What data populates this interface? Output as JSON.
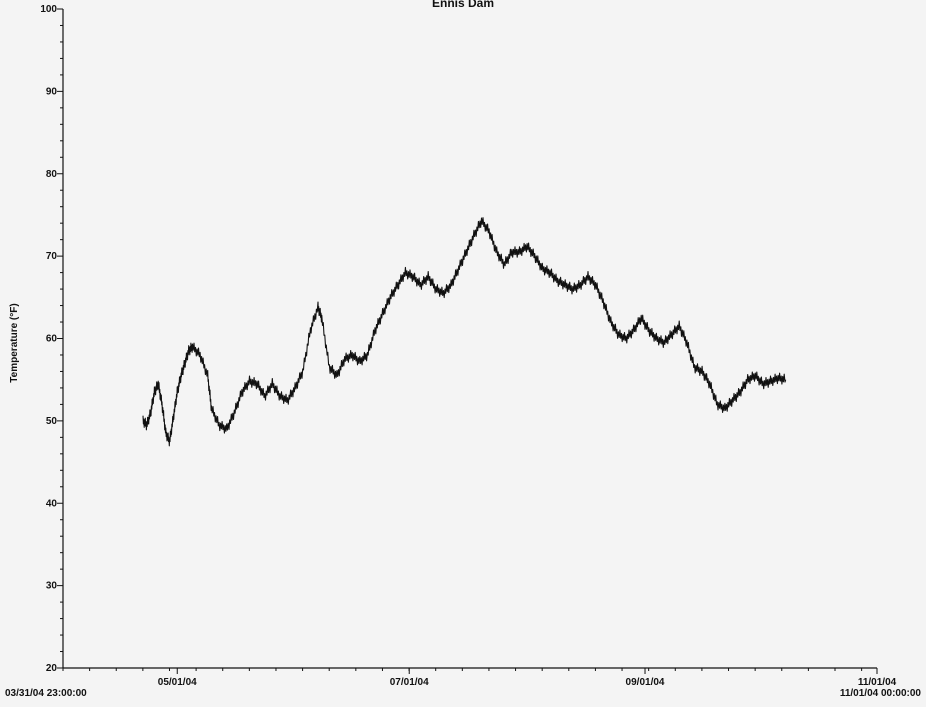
{
  "chart_data": {
    "type": "line",
    "title": "Ennis Dam",
    "xlabel": "",
    "ylabel": "Temperature (°F)",
    "ylim": [
      20,
      100
    ],
    "y_ticks": [
      20,
      30,
      40,
      50,
      60,
      70,
      80,
      90,
      100
    ],
    "xlim": [
      "2004-03-31 23:00",
      "2004-11-01 00:00"
    ],
    "x_ticks": [
      {
        "date": "2004-05-01",
        "label": "05/01/04"
      },
      {
        "date": "2004-07-01",
        "label": "07/01/04"
      },
      {
        "date": "2004-09-01",
        "label": "09/01/04"
      },
      {
        "date": "2004-11-01",
        "label": "11/01/04"
      }
    ],
    "x_start_label": "03/31/04 23:00:00",
    "x_end_label": "11/01/04 00:00:00",
    "grid": false,
    "line_color": "#111111",
    "series": [
      {
        "name": "",
        "x": [
          "2004-04-22",
          "2004-04-23",
          "2004-04-24",
          "2004-04-25",
          "2004-04-26",
          "2004-04-27",
          "2004-04-28",
          "2004-04-29",
          "2004-04-30",
          "2004-05-01",
          "2004-05-02",
          "2004-05-03",
          "2004-05-04",
          "2004-05-05",
          "2004-05-07",
          "2004-05-09",
          "2004-05-10",
          "2004-05-12",
          "2004-05-14",
          "2004-05-16",
          "2004-05-18",
          "2004-05-20",
          "2004-05-22",
          "2004-05-24",
          "2004-05-26",
          "2004-05-28",
          "2004-05-30",
          "2004-06-01",
          "2004-06-03",
          "2004-06-05",
          "2004-06-07",
          "2004-06-08",
          "2004-06-10",
          "2004-06-12",
          "2004-06-14",
          "2004-06-16",
          "2004-06-18",
          "2004-06-20",
          "2004-06-22",
          "2004-06-24",
          "2004-06-26",
          "2004-06-28",
          "2004-06-30",
          "2004-07-02",
          "2004-07-04",
          "2004-07-06",
          "2004-07-08",
          "2004-07-10",
          "2004-07-12",
          "2004-07-14",
          "2004-07-16",
          "2004-07-18",
          "2004-07-20",
          "2004-07-22",
          "2004-07-24",
          "2004-07-26",
          "2004-07-28",
          "2004-07-30",
          "2004-08-01",
          "2004-08-03",
          "2004-08-05",
          "2004-08-07",
          "2004-08-09",
          "2004-08-11",
          "2004-08-13",
          "2004-08-15",
          "2004-08-17",
          "2004-08-19",
          "2004-08-21",
          "2004-08-23",
          "2004-08-25",
          "2004-08-27",
          "2004-08-29",
          "2004-08-31",
          "2004-09-02",
          "2004-09-04",
          "2004-09-06",
          "2004-09-08",
          "2004-09-10",
          "2004-09-12",
          "2004-09-14",
          "2004-09-16",
          "2004-09-18",
          "2004-09-20",
          "2004-09-22",
          "2004-09-24",
          "2004-09-26",
          "2004-09-28",
          "2004-09-30",
          "2004-10-02",
          "2004-10-04",
          "2004-10-06",
          "2004-10-08"
        ],
        "y": [
          50.0,
          49.5,
          51.0,
          53.5,
          54.5,
          52.0,
          48.5,
          47.5,
          50.5,
          53.5,
          55.5,
          57.0,
          58.5,
          59.0,
          58.0,
          55.5,
          51.5,
          49.5,
          49.0,
          51.0,
          53.5,
          54.8,
          54.5,
          53.0,
          54.5,
          53.0,
          52.5,
          54.0,
          56.0,
          61.0,
          63.8,
          62.5,
          56.5,
          55.5,
          57.5,
          58.0,
          57.2,
          58.0,
          61.0,
          63.0,
          65.0,
          66.5,
          68.0,
          67.5,
          66.5,
          67.5,
          66.0,
          65.5,
          66.5,
          68.5,
          70.5,
          72.5,
          74.3,
          73.0,
          70.5,
          69.0,
          70.5,
          70.5,
          71.2,
          70.0,
          68.5,
          68.0,
          67.0,
          66.5,
          66.0,
          66.5,
          67.5,
          66.5,
          64.5,
          62.0,
          60.5,
          60.0,
          61.0,
          62.5,
          61.0,
          60.0,
          59.5,
          60.5,
          61.5,
          59.5,
          56.5,
          56.0,
          54.5,
          52.0,
          51.5,
          52.5,
          53.5,
          55.0,
          55.5,
          54.5,
          54.8,
          55.2,
          55.0
        ]
      }
    ]
  }
}
